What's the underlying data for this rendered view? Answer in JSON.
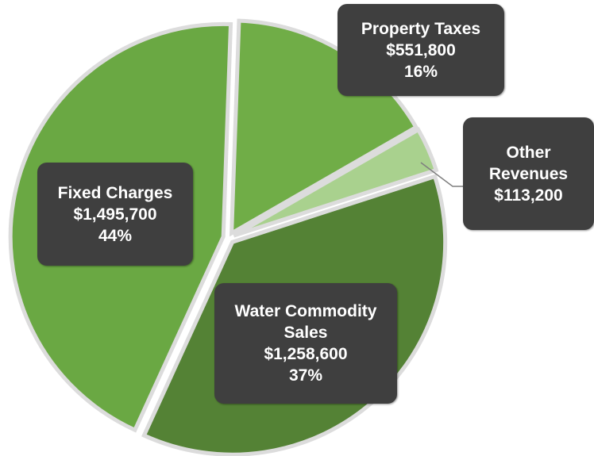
{
  "chart_data": {
    "type": "pie",
    "categories": [
      "Property Taxes",
      "Other Revenues",
      "Water Commodity Sales",
      "Fixed Charges"
    ],
    "values": [
      551800,
      113200,
      1258600,
      1495700
    ],
    "value_labels": [
      "$551,800",
      "$113,200",
      "$1,258,600",
      "$1,495,700"
    ],
    "percent_labels": [
      "16%",
      null,
      "37%",
      "44%"
    ],
    "colors": [
      "#70ad47",
      "#a9d18e",
      "#548235",
      "#6aa843"
    ]
  }
}
